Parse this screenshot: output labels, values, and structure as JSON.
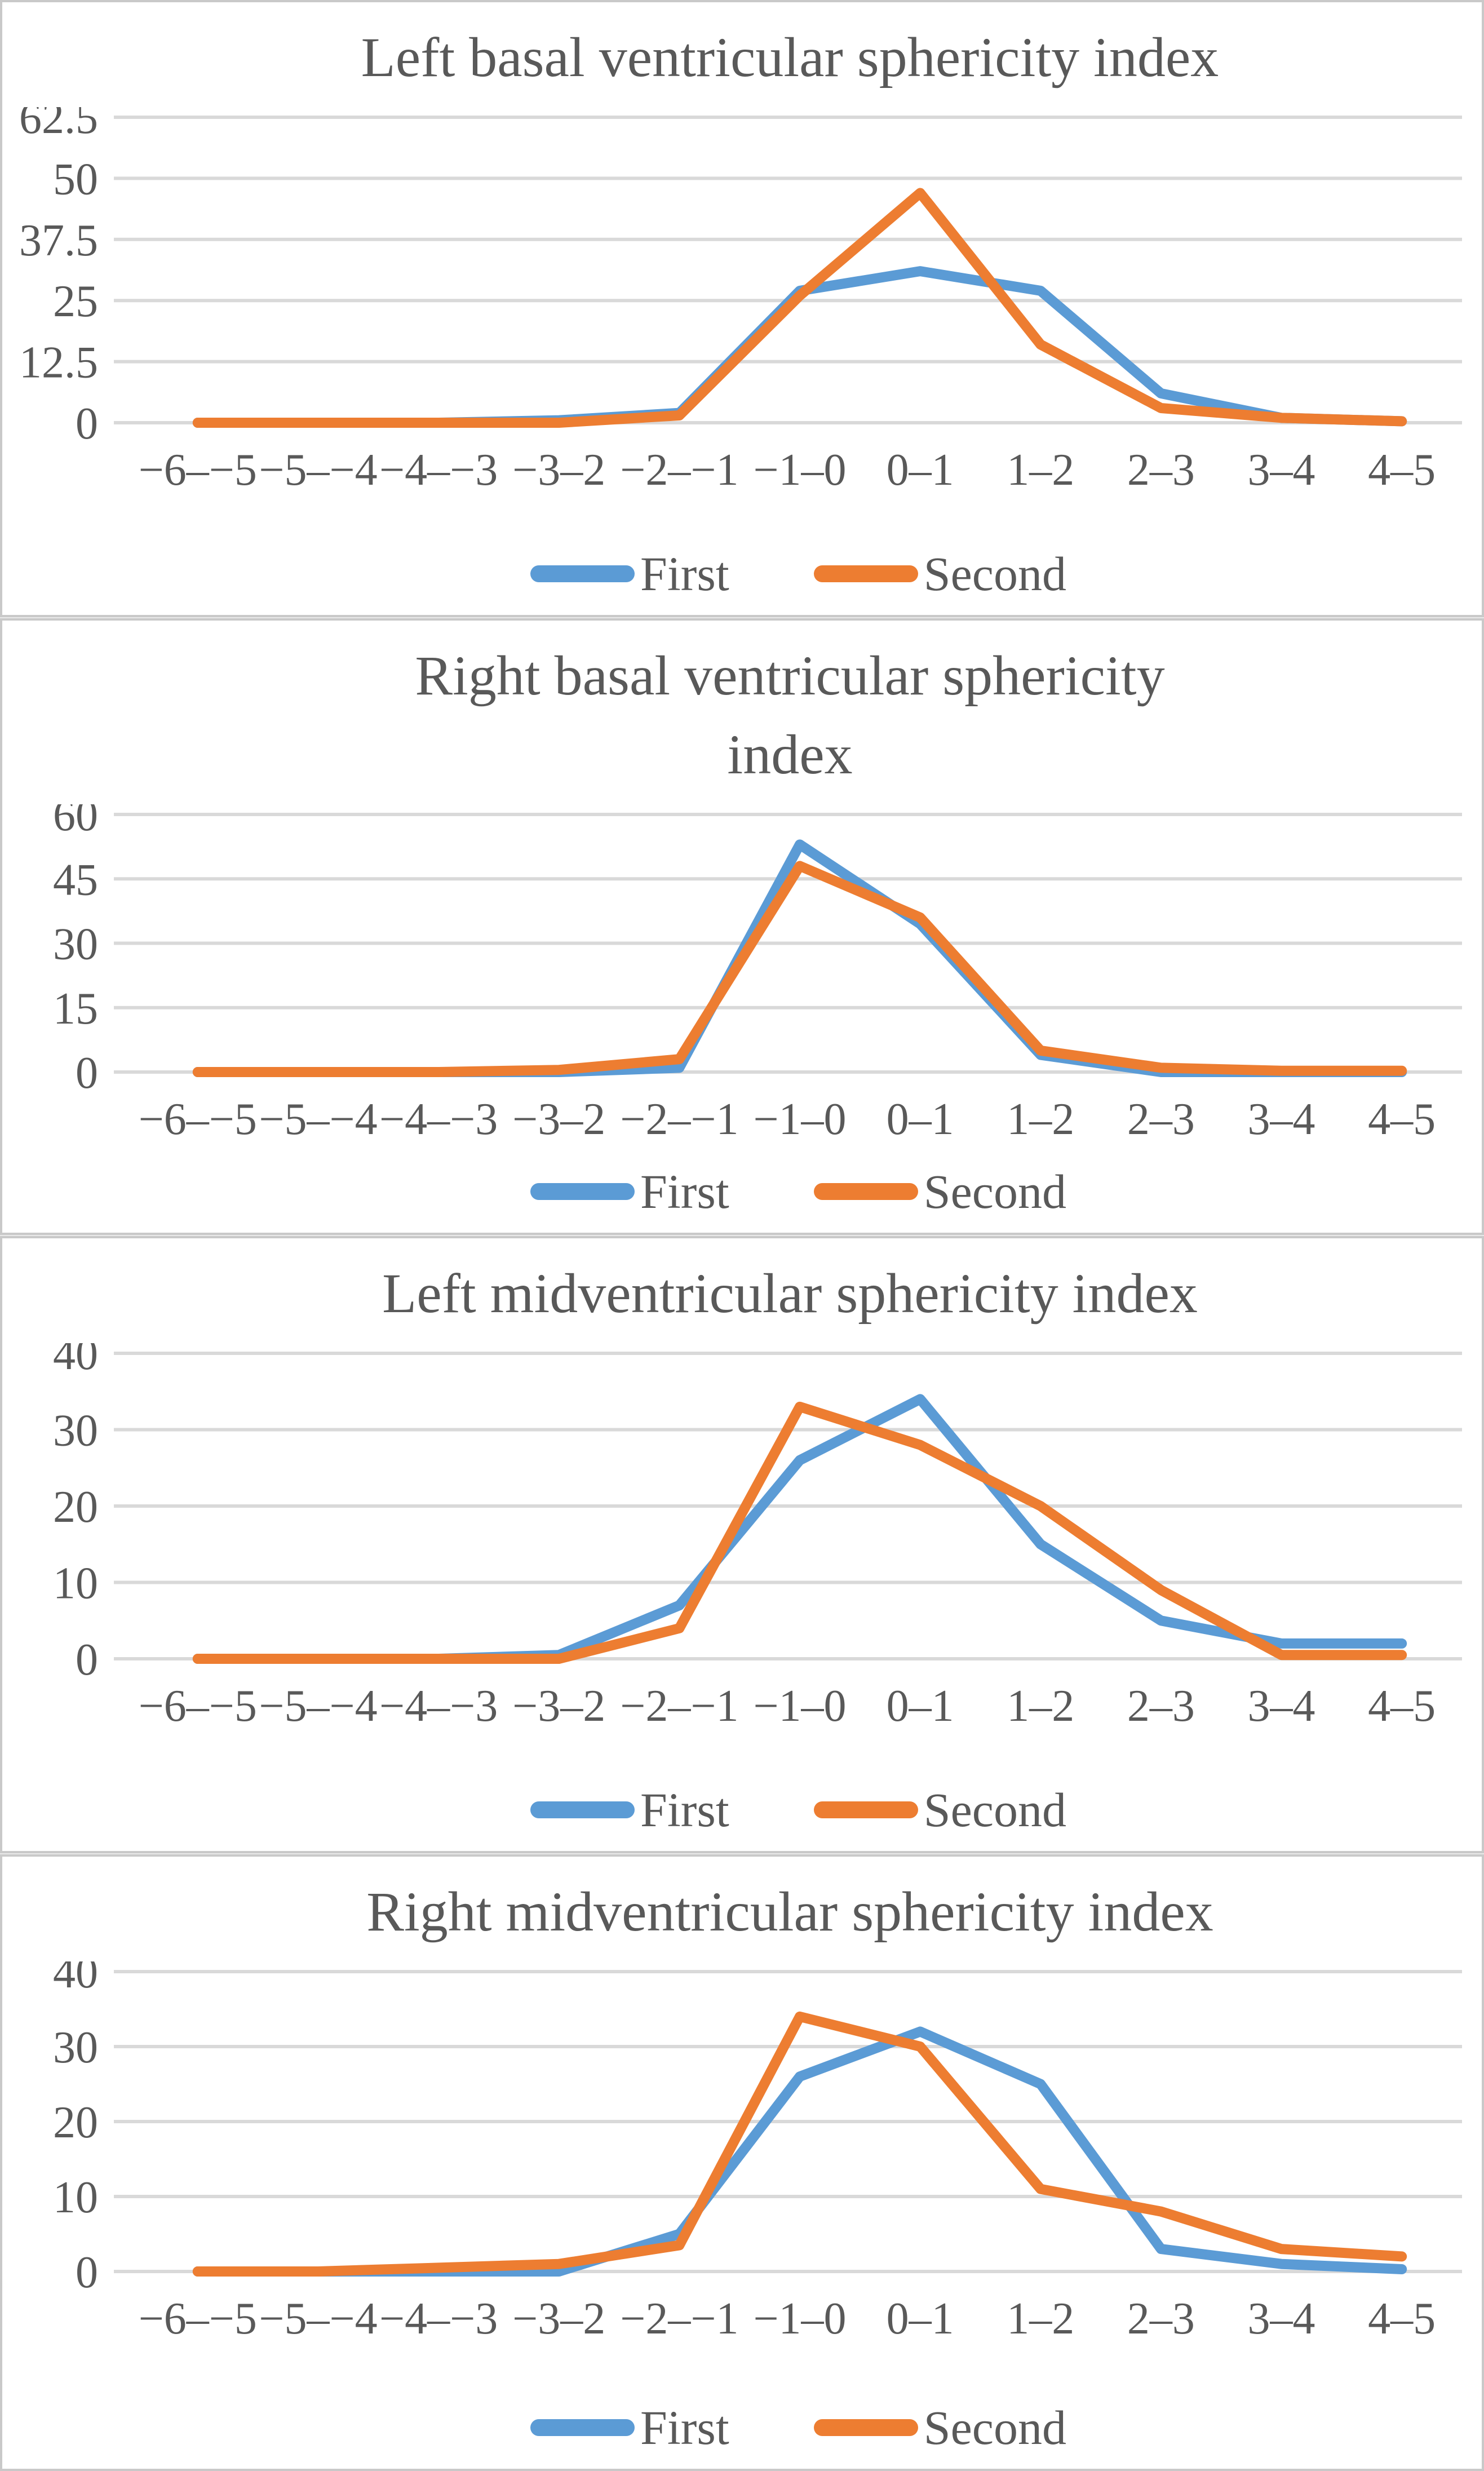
{
  "figure": {
    "background": "#ffffff",
    "panel_border_color": "#c9c9c9",
    "gridline_color": "#d9d9d9",
    "text_color": "#595959",
    "accent_blue": "#5B9BD5",
    "accent_orange": "#ED7D31"
  },
  "chart_data": [
    {
      "type": "line",
      "title": "Left basal ventricular sphericity index",
      "categories": [
        "−6–−5",
        "−5–−4",
        "−4–−3",
        "−3–2",
        "−2–−1",
        "−1–0",
        "0–1",
        "1–2",
        "2–3",
        "3–4",
        "4–5"
      ],
      "yticks": [
        "0",
        "12.5",
        "25",
        "37.5",
        "50",
        "62.5"
      ],
      "ytick_values": [
        0,
        12.5,
        25,
        37.5,
        50,
        62.5
      ],
      "ylim": [
        0,
        62.5
      ],
      "grid": true,
      "legend_position": "bottom",
      "xlabel": "",
      "ylabel": "",
      "series": [
        {
          "name": "First",
          "color": "#5B9BD5",
          "values": [
            0,
            0,
            0,
            0.5,
            2,
            27,
            31,
            27,
            6,
            1,
            0.3
          ]
        },
        {
          "name": "Second",
          "color": "#ED7D31",
          "values": [
            0,
            0,
            0,
            0,
            1.5,
            26,
            47,
            16,
            3,
            1,
            0.3
          ]
        }
      ]
    },
    {
      "type": "line",
      "title": "Right basal ventricular sphericity\nindex",
      "categories": [
        "−6–−5",
        "−5–−4",
        "−4–−3",
        "−3–2",
        "−2–−1",
        "−1–0",
        "0–1",
        "1–2",
        "2–3",
        "3–4",
        "4–5"
      ],
      "yticks": [
        "0",
        "15",
        "30",
        "45",
        "60"
      ],
      "ytick_values": [
        0,
        15,
        30,
        45,
        60
      ],
      "ylim": [
        0,
        60
      ],
      "grid": true,
      "legend_position": "bottom",
      "xlabel": "",
      "ylabel": "",
      "series": [
        {
          "name": "First",
          "color": "#5B9BD5",
          "values": [
            0,
            0,
            0,
            0,
            1,
            53,
            34.5,
            4,
            0,
            0,
            0
          ]
        },
        {
          "name": "Second",
          "color": "#ED7D31",
          "values": [
            0,
            0,
            0,
            0.5,
            3,
            48,
            36,
            5,
            1,
            0.3,
            0.3
          ]
        }
      ]
    },
    {
      "type": "line",
      "title": "Left midventricular sphericity index",
      "categories": [
        "−6–−5",
        "−5–−4",
        "−4–−3",
        "−3–2",
        "−2–−1",
        "−1–0",
        "0–1",
        "1–2",
        "2–3",
        "3–4",
        "4–5"
      ],
      "yticks": [
        "0",
        "10",
        "20",
        "30",
        "40"
      ],
      "ytick_values": [
        0,
        10,
        20,
        30,
        40
      ],
      "ylim": [
        0,
        40
      ],
      "grid": true,
      "legend_position": "bottom",
      "xlabel": "",
      "ylabel": "",
      "series": [
        {
          "name": "First",
          "color": "#5B9BD5",
          "values": [
            0,
            0,
            0,
            0.5,
            7,
            26,
            34,
            15,
            5,
            2,
            2
          ]
        },
        {
          "name": "Second",
          "color": "#ED7D31",
          "values": [
            0,
            0,
            0,
            0,
            4,
            33,
            28,
            20,
            9,
            0.5,
            0.5
          ]
        }
      ]
    },
    {
      "type": "line",
      "title": "Right midventricular sphericity index",
      "categories": [
        "−6–−5",
        "−5–−4",
        "−4–−3",
        "−3–2",
        "−2–−1",
        "−1–0",
        "0–1",
        "1–2",
        "2–3",
        "3–4",
        "4–5"
      ],
      "yticks": [
        "0",
        "10",
        "20",
        "30",
        "40"
      ],
      "ytick_values": [
        0,
        10,
        20,
        30,
        40
      ],
      "ylim": [
        0,
        40
      ],
      "grid": true,
      "legend_position": "bottom",
      "xlabel": "",
      "ylabel": "",
      "series": [
        {
          "name": "First",
          "color": "#5B9BD5",
          "values": [
            0,
            0,
            0,
            0,
            5,
            26,
            32,
            25,
            3,
            1,
            0.3
          ]
        },
        {
          "name": "Second",
          "color": "#ED7D31",
          "values": [
            0,
            0,
            0.5,
            1,
            3.5,
            34,
            30,
            11,
            8,
            3,
            2
          ]
        }
      ]
    }
  ]
}
